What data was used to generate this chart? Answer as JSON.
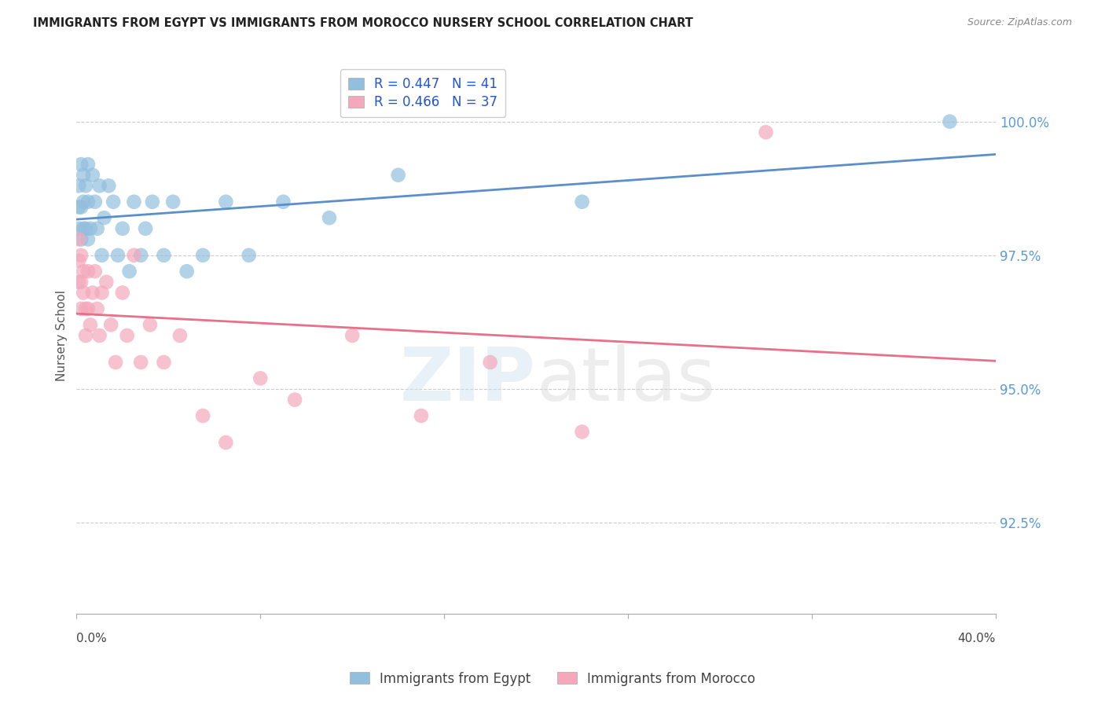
{
  "title": "IMMIGRANTS FROM EGYPT VS IMMIGRANTS FROM MOROCCO NURSERY SCHOOL CORRELATION CHART",
  "source": "Source: ZipAtlas.com",
  "ylabel": "Nursery School",
  "ytick_labels": [
    "100.0%",
    "97.5%",
    "95.0%",
    "92.5%"
  ],
  "ytick_values": [
    1.0,
    0.975,
    0.95,
    0.925
  ],
  "xlim": [
    0.0,
    0.4
  ],
  "ylim": [
    0.908,
    1.012
  ],
  "r_egypt": 0.447,
  "n_egypt": 41,
  "r_morocco": 0.466,
  "n_morocco": 37,
  "legend_label_egypt": "Immigrants from Egypt",
  "legend_label_morocco": "Immigrants from Morocco",
  "egypt_color": "#92bfde",
  "morocco_color": "#f4a8bc",
  "egypt_line_color": "#5b8fc9",
  "morocco_line_color": "#e8708a",
  "background_color": "#ffffff",
  "egypt_x": [
    0.001,
    0.001,
    0.001,
    0.002,
    0.002,
    0.002,
    0.003,
    0.003,
    0.003,
    0.004,
    0.004,
    0.005,
    0.005,
    0.005,
    0.006,
    0.007,
    0.008,
    0.009,
    0.01,
    0.011,
    0.012,
    0.014,
    0.016,
    0.018,
    0.02,
    0.023,
    0.025,
    0.028,
    0.03,
    0.033,
    0.038,
    0.042,
    0.048,
    0.055,
    0.065,
    0.075,
    0.09,
    0.11,
    0.14,
    0.22,
    0.38
  ],
  "egypt_y": [
    0.988,
    0.984,
    0.98,
    0.992,
    0.984,
    0.978,
    0.99,
    0.985,
    0.98,
    0.988,
    0.98,
    0.992,
    0.985,
    0.978,
    0.98,
    0.99,
    0.985,
    0.98,
    0.988,
    0.975,
    0.982,
    0.988,
    0.985,
    0.975,
    0.98,
    0.972,
    0.985,
    0.975,
    0.98,
    0.985,
    0.975,
    0.985,
    0.972,
    0.975,
    0.985,
    0.975,
    0.985,
    0.982,
    0.99,
    0.985,
    1.0
  ],
  "morocco_x": [
    0.001,
    0.001,
    0.001,
    0.002,
    0.002,
    0.002,
    0.003,
    0.003,
    0.004,
    0.004,
    0.005,
    0.005,
    0.006,
    0.007,
    0.008,
    0.009,
    0.01,
    0.011,
    0.013,
    0.015,
    0.017,
    0.02,
    0.022,
    0.025,
    0.028,
    0.032,
    0.038,
    0.045,
    0.055,
    0.065,
    0.08,
    0.095,
    0.12,
    0.15,
    0.18,
    0.22,
    0.3
  ],
  "morocco_y": [
    0.978,
    0.974,
    0.97,
    0.975,
    0.97,
    0.965,
    0.972,
    0.968,
    0.965,
    0.96,
    0.972,
    0.965,
    0.962,
    0.968,
    0.972,
    0.965,
    0.96,
    0.968,
    0.97,
    0.962,
    0.955,
    0.968,
    0.96,
    0.975,
    0.955,
    0.962,
    0.955,
    0.96,
    0.945,
    0.94,
    0.952,
    0.948,
    0.96,
    0.945,
    0.955,
    0.942,
    0.998
  ]
}
